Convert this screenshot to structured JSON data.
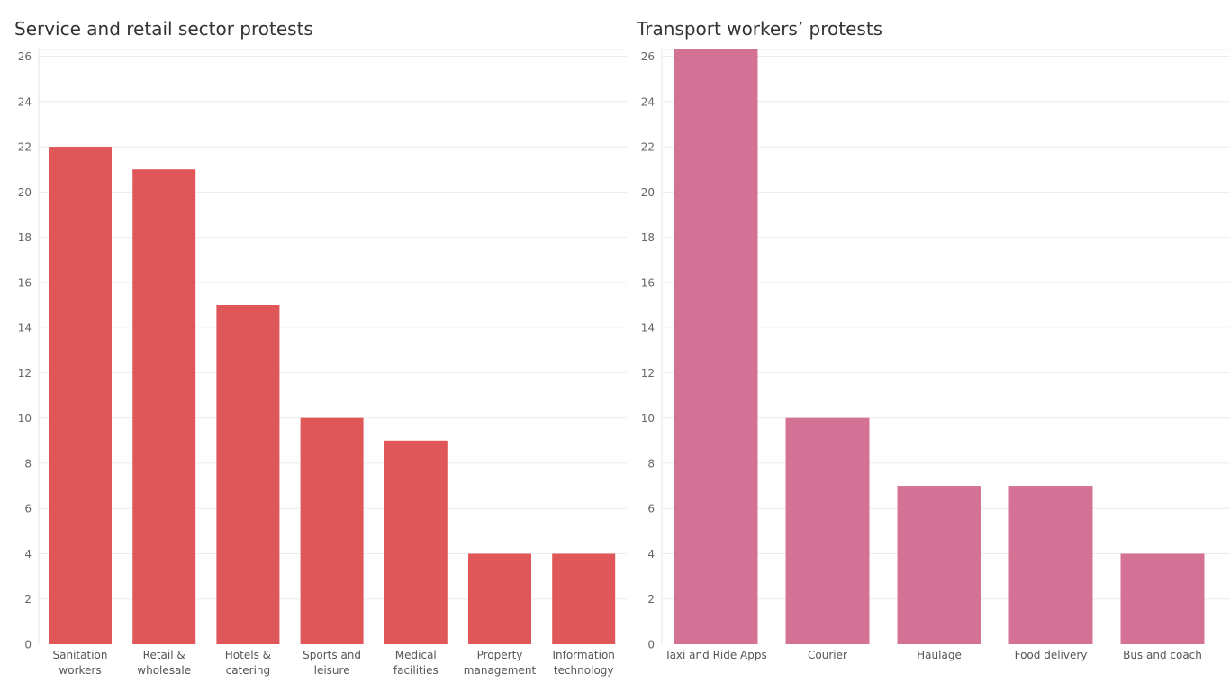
{
  "chart_data": [
    {
      "type": "bar",
      "title": "Service and retail sector protests",
      "categories": [
        "Sanitation workers",
        "Retail & wholesale",
        "Hotels & catering",
        "Sports and leisure",
        "Medical facilities",
        "Property management",
        "Information technology"
      ],
      "category_lines": [
        [
          "Sanitation",
          "workers"
        ],
        [
          "Retail &",
          "wholesale"
        ],
        [
          "Hotels &",
          "catering"
        ],
        [
          "Sports and",
          "leisure"
        ],
        [
          "Medical",
          "facilities"
        ],
        [
          "Property",
          "management"
        ],
        [
          "Information",
          "technology"
        ]
      ],
      "values": [
        22,
        21,
        15,
        10,
        9,
        4,
        4
      ],
      "yticks": [
        0,
        2,
        4,
        6,
        8,
        10,
        12,
        14,
        16,
        18,
        20,
        22,
        24,
        26
      ],
      "ylim": [
        0,
        26.3
      ],
      "grid": true,
      "color": "#e05759"
    },
    {
      "type": "bar",
      "title": "Transport workers’ protests",
      "categories": [
        "Taxi and Ride Apps",
        "Courier",
        "Haulage",
        "Food delivery",
        "Bus and coach"
      ],
      "category_lines": [
        [
          "Taxi and Ride Apps"
        ],
        [
          "Courier"
        ],
        [
          "Haulage"
        ],
        [
          "Food delivery"
        ],
        [
          "Bus and coach"
        ]
      ],
      "values": [
        27,
        10,
        7,
        7,
        4
      ],
      "yticks": [
        0,
        2,
        4,
        6,
        8,
        10,
        12,
        14,
        16,
        18,
        20,
        22,
        24,
        26
      ],
      "ylim": [
        0,
        26.3
      ],
      "grid": true,
      "color": "#d37295"
    }
  ]
}
